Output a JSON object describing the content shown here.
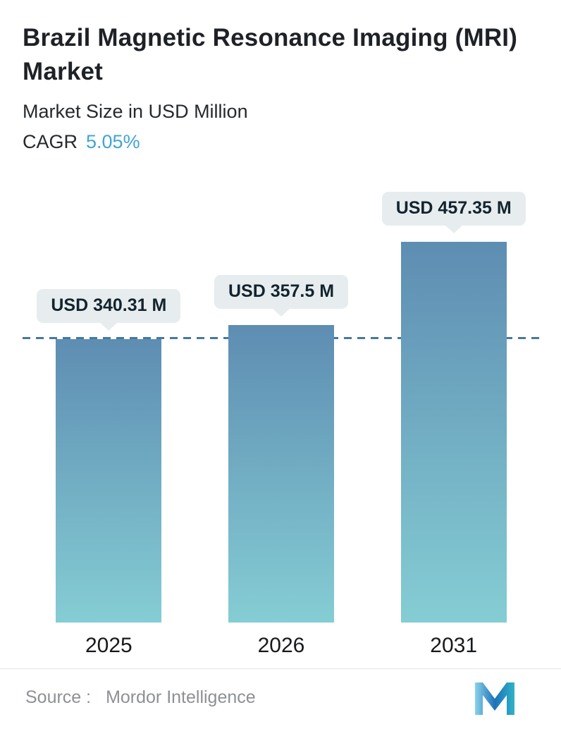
{
  "header": {
    "title": "Brazil Magnetic Resonance Imaging (MRI) Market",
    "subtitle": "Market Size in USD Million",
    "cagr_label": "CAGR",
    "cagr_value": "5.05%"
  },
  "chart_data": {
    "type": "bar",
    "title": "Brazil Magnetic Resonance Imaging (MRI) Market",
    "subtitle": "Market Size in USD Million",
    "ylabel": "Market Size in USD Million",
    "cagr": "5.05%",
    "categories": [
      "2025",
      "2026",
      "2031"
    ],
    "values": [
      340.31,
      357.5,
      457.35
    ],
    "value_labels": [
      "USD 340.31 M",
      "USD 357.5 M",
      "USD 457.35 M"
    ],
    "baseline": 0,
    "grid": false,
    "legend": false,
    "reference_line": {
      "style": "dashed",
      "at_value": 340.31
    },
    "colors": {
      "bar_gradient_top": "#5e8db2",
      "bar_gradient_bottom": "#85cdd4",
      "reference_line": "#47799e",
      "accent": "#42a4d5",
      "label_badge_bg": "#e7edee"
    }
  },
  "footer": {
    "source_label": "Source :",
    "source_value": "Mordor Intelligence",
    "logo_name": "mordor-intelligence-logo",
    "logo_colors": [
      "#8ad2ec",
      "#1e72b8",
      "#2fb3c6"
    ]
  }
}
